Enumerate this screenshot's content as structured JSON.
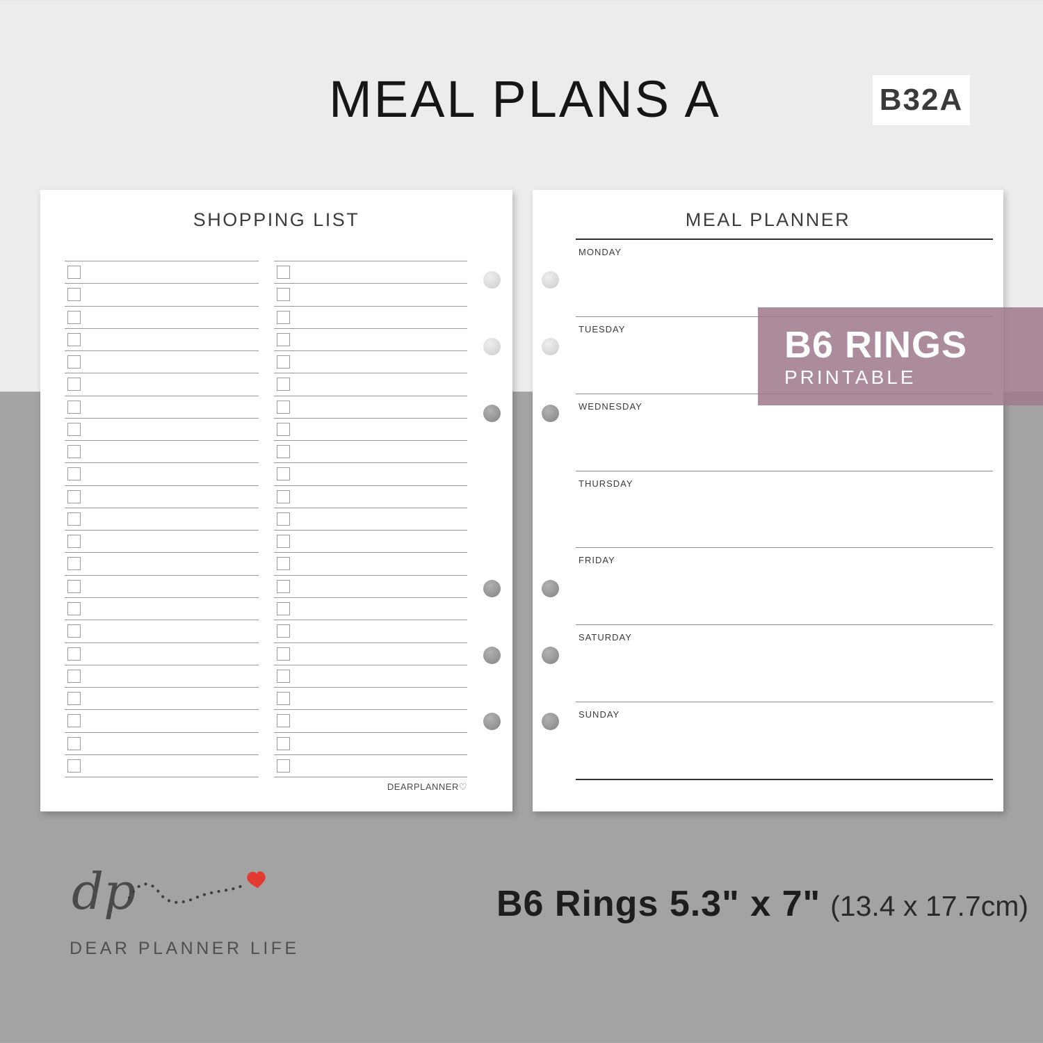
{
  "page": {
    "title": "MEAL PLANS A",
    "badge": "B32A"
  },
  "shopping_list": {
    "header": "SHOPPING LIST",
    "columns": 2,
    "rows_per_column": 23,
    "footer_credit": "DEARPLANNER♡"
  },
  "meal_planner": {
    "header": "MEAL PLANNER",
    "days": [
      "MONDAY",
      "TUESDAY",
      "WEDNESDAY",
      "THURSDAY",
      "FRIDAY",
      "SATURDAY",
      "SUNDAY"
    ]
  },
  "banner": {
    "line1": "B6 RINGS",
    "line2": "PRINTABLE",
    "color_rgba": "rgba(161,124,141,0.88)"
  },
  "footer": {
    "size_bold": "B6 Rings 5.3\" x 7\"",
    "size_light": "(13.4 x 17.7cm)",
    "logo_initials": "dp",
    "logo_name": "DEAR PLANNER LIFE",
    "heart_color": "#e23a30",
    "trail_color": "#3f3f3f"
  },
  "colors": {
    "background_top": "#ececec",
    "background_bottom": "#a3a3a3",
    "page": "#ffffff"
  }
}
